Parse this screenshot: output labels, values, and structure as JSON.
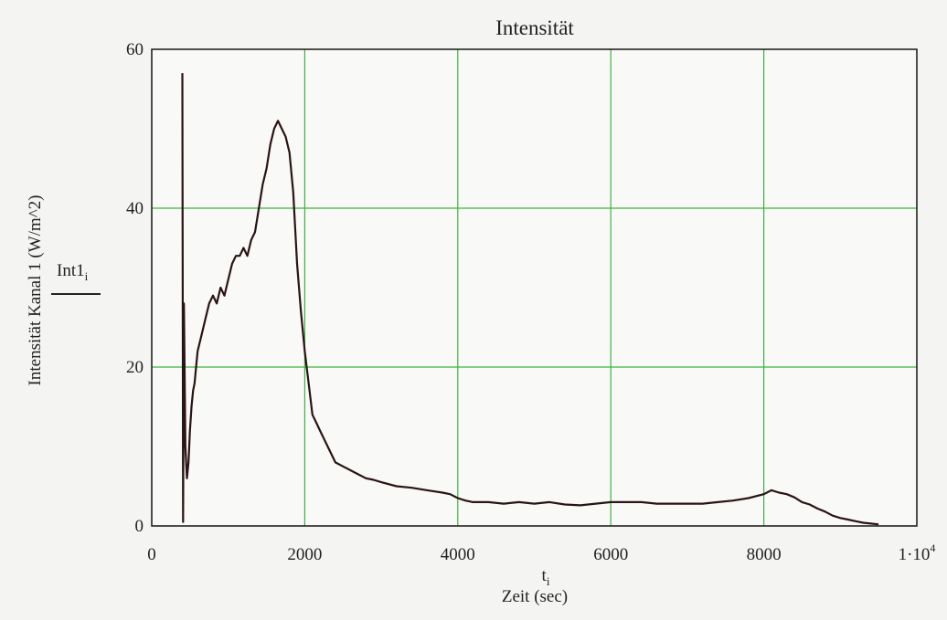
{
  "chart_data": {
    "type": "line",
    "title": "Intensität",
    "xlabel": "Zeit (sec)",
    "x_var": "t",
    "x_var_sub": "i",
    "ylabel": "Intensität Kanal 1  (W/m^2)",
    "legend_label": "Int1",
    "legend_label_sub": "i",
    "xlim": [
      0,
      10000
    ],
    "ylim": [
      0,
      60
    ],
    "xticks": [
      {
        "value": 0,
        "label": "0"
      },
      {
        "value": 2000,
        "label": "2000"
      },
      {
        "value": 4000,
        "label": "4000"
      },
      {
        "value": 6000,
        "label": "6000"
      },
      {
        "value": 8000,
        "label": "8000"
      },
      {
        "value": 10000,
        "label": "1·10",
        "exp": "4"
      }
    ],
    "yticks": [
      {
        "value": 0,
        "label": "0"
      },
      {
        "value": 20,
        "label": "20"
      },
      {
        "value": 40,
        "label": "40"
      },
      {
        "value": 60,
        "label": "60"
      }
    ],
    "grid": true,
    "grid_color": "#3cb43c",
    "line_color": "#2a1414",
    "series": [
      {
        "x": [
          400,
          410,
          420,
          440,
          460,
          480,
          500,
          520,
          540,
          560,
          580,
          600,
          650,
          700,
          750,
          800,
          850,
          900,
          950,
          1000,
          1050,
          1100,
          1150,
          1200,
          1250,
          1300,
          1350,
          1400,
          1450,
          1500,
          1550,
          1600,
          1650,
          1700,
          1750,
          1800,
          1850,
          1900,
          1950,
          2000,
          2050,
          2100,
          2150,
          2200,
          2250,
          2300,
          2400,
          2500,
          2600,
          2700,
          2800,
          2900,
          3000,
          3200,
          3400,
          3600,
          3800,
          3900,
          4000,
          4100,
          4200,
          4400,
          4600,
          4800,
          5000,
          5200,
          5400,
          5600,
          5800,
          6000,
          6200,
          6400,
          6600,
          6800,
          7000,
          7200,
          7400,
          7600,
          7800,
          8000,
          8100,
          8200,
          8300,
          8400,
          8500,
          8600,
          8700,
          8800,
          8900,
          9000,
          9100,
          9200,
          9300,
          9400,
          9500
        ],
        "y": [
          57,
          0.5,
          28,
          10,
          6,
          8,
          12,
          15,
          17,
          18,
          20,
          22,
          24,
          26,
          28,
          29,
          28,
          30,
          29,
          31,
          33,
          34,
          34,
          35,
          34,
          36,
          37,
          40,
          43,
          45,
          48,
          50,
          51,
          50,
          49,
          47,
          42,
          33,
          27,
          22,
          18,
          14,
          13,
          12,
          11,
          10,
          8,
          7.5,
          7,
          6.5,
          6,
          5.8,
          5.5,
          5,
          4.8,
          4.5,
          4.2,
          4,
          3.5,
          3.2,
          3,
          3,
          2.8,
          3,
          2.8,
          3,
          2.7,
          2.6,
          2.8,
          3,
          3,
          3,
          2.8,
          2.8,
          2.8,
          2.8,
          3,
          3.2,
          3.5,
          4,
          4.5,
          4.2,
          4,
          3.6,
          3,
          2.7,
          2.2,
          1.8,
          1.3,
          1,
          0.8,
          0.6,
          0.4,
          0.3,
          0.2
        ]
      }
    ]
  }
}
